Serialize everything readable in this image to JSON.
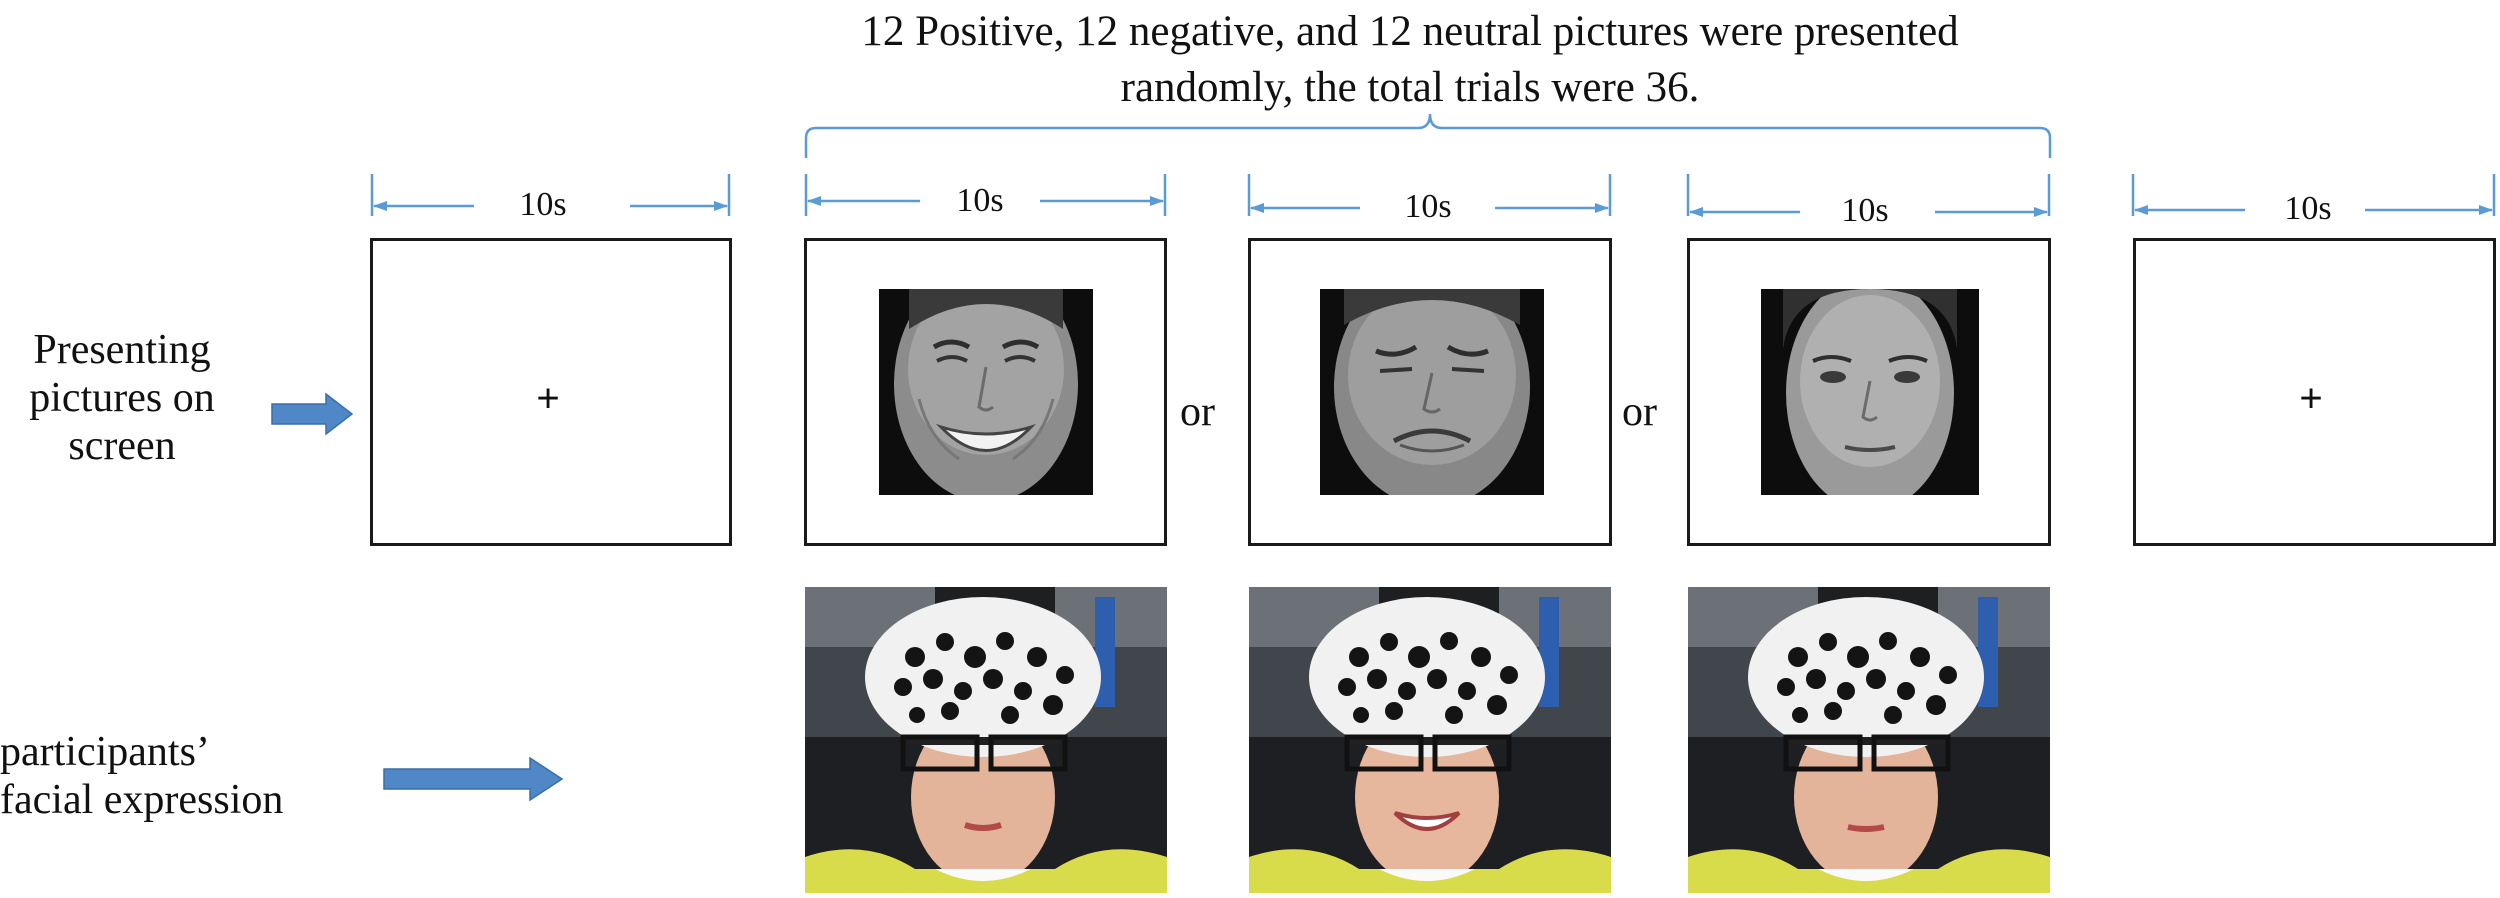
{
  "header": {
    "line1": "12 Positive, 12 negative, and 12 neutral pictures were presented",
    "line2": "randomly, the total trials were 36."
  },
  "labels": {
    "presenting_line1": "Presenting",
    "presenting_line2": "pictures on",
    "presenting_line3": "screen",
    "facial_line1": "participants’",
    "facial_line2": "facial expression"
  },
  "durations": [
    "10s",
    "10s",
    "10s",
    "10s",
    "10s"
  ],
  "fixation_symbol": "+",
  "or_label": "or",
  "colors": {
    "arrow_blue": "#4f87c7",
    "timeline_blue": "#5b9bd5",
    "frame": "#1a1a1a"
  },
  "icons": [
    "fixation-cross",
    "positive-face-stimulus",
    "negative-face-stimulus",
    "neutral-face-stimulus",
    "participant-webcam-photo",
    "right-arrow"
  ]
}
